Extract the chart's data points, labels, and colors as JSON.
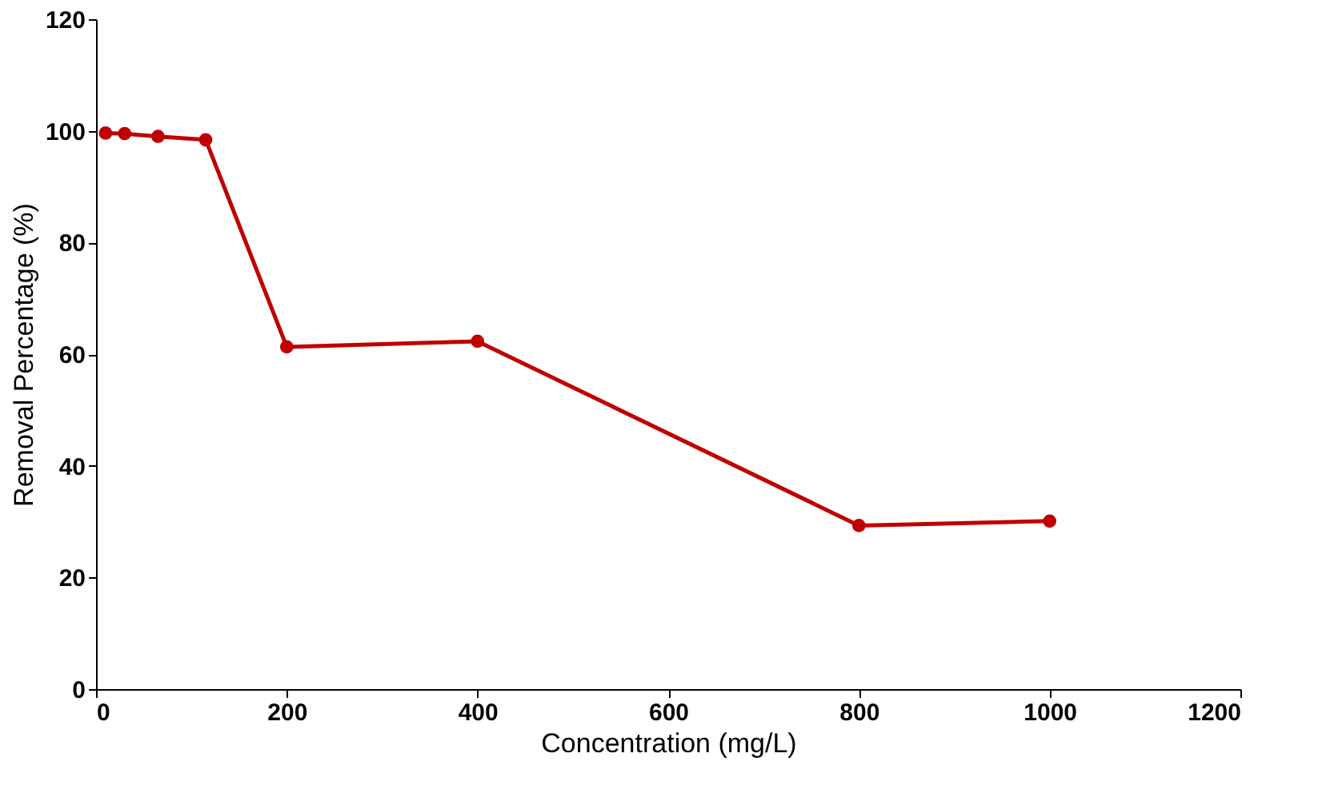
{
  "chart_data": {
    "type": "line",
    "xlabel": "Concentration (mg/L)",
    "ylabel": "Removal Percentage (%)",
    "x": [
      10,
      30,
      65,
      115,
      200,
      400,
      800,
      1000
    ],
    "series": [
      {
        "color": "#c00000",
        "values": [
          99.6,
          99.5,
          99,
          98.4,
          61.3,
          62.3,
          29.3,
          30.1
        ]
      }
    ],
    "xlim": [
      0,
      1200
    ],
    "xticks": [
      0,
      200,
      400,
      600,
      800,
      1000,
      1200
    ],
    "ylim": [
      0,
      120
    ],
    "yticks": [
      0,
      20,
      40,
      60,
      80,
      100,
      120
    ],
    "grid": false,
    "marker": "circle",
    "line_style": "solid"
  }
}
